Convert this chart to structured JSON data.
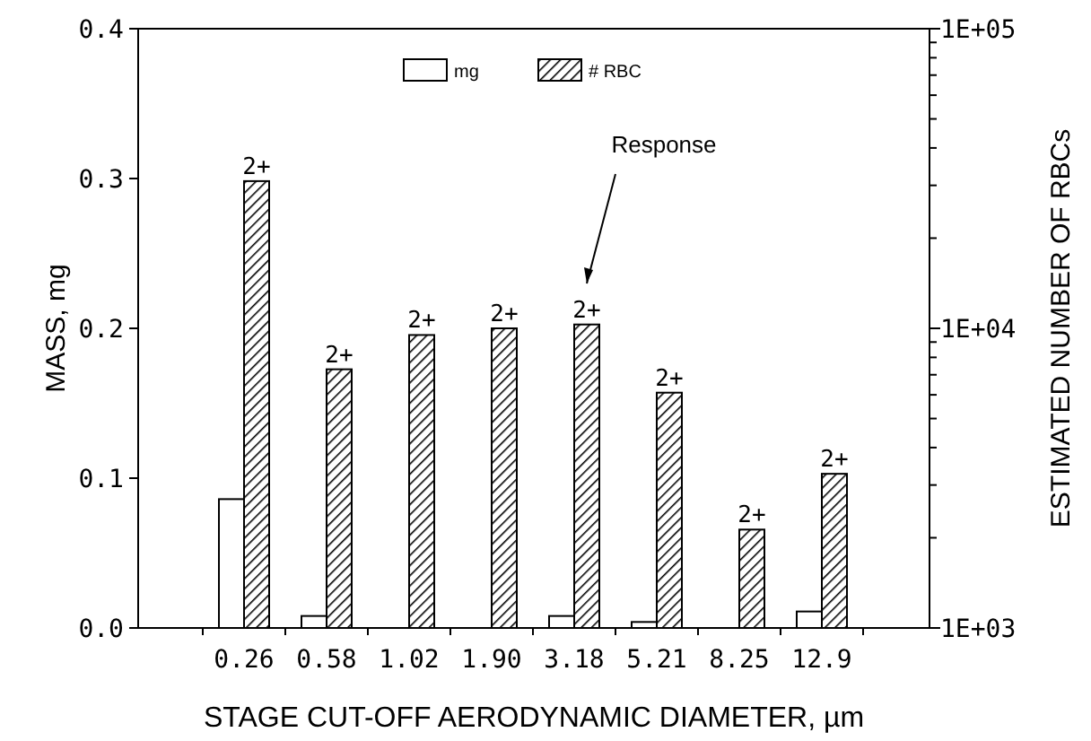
{
  "chart_data": {
    "type": "bar",
    "xlabel": "STAGE CUT-OFF AERODYNAMIC DIAMETER, µm",
    "ylabel": "MASS, mg",
    "y2label": "ESTIMATED NUMBER OF RBCs",
    "categories": [
      "0.26",
      "0.58",
      "1.02",
      "1.90",
      "3.18",
      "5.21",
      "8.25",
      "12.9"
    ],
    "series": [
      {
        "name": "mg",
        "color": "#ffffff",
        "values": [
          0.086,
          0.008,
          0,
          0,
          0.008,
          0.004,
          0,
          0.011
        ]
      },
      {
        "name": "# RBC",
        "color": "#000000",
        "axis": "y2",
        "values": [
          31000,
          7300,
          9500,
          10000,
          10300,
          6100,
          2130,
          3270
        ],
        "value_labels": [
          "2+",
          "2+",
          "2+",
          "2+",
          "2+",
          "2+",
          "2+",
          "2+"
        ]
      }
    ],
    "ylim": [
      0,
      0.4
    ],
    "yticks": [
      {
        "value": 0,
        "label": "0.0"
      },
      {
        "value": 0.1,
        "label": "0.1"
      },
      {
        "value": 0.2,
        "label": "0.2"
      },
      {
        "value": 0.3,
        "label": "0.3"
      },
      {
        "value": 0.4,
        "label": "0.4"
      }
    ],
    "y2lim": [
      1000,
      100000
    ],
    "y2ticks": [
      {
        "value": 1000,
        "label": "1E+03"
      },
      {
        "value": 2000,
        "label": null
      },
      {
        "value": 3000,
        "label": null
      },
      {
        "value": 4000,
        "label": null
      },
      {
        "value": 5000,
        "label": null
      },
      {
        "value": 6000,
        "label": null
      },
      {
        "value": 7000,
        "label": null
      },
      {
        "value": 8000,
        "label": null
      },
      {
        "value": 9000,
        "label": null
      },
      {
        "value": 10000,
        "label": "1E+04"
      },
      {
        "value": 20000,
        "label": null
      },
      {
        "value": 30000,
        "label": null
      },
      {
        "value": 40000,
        "label": null
      },
      {
        "value": 50000,
        "label": null
      },
      {
        "value": 60000,
        "label": null
      },
      {
        "value": 70000,
        "label": null
      },
      {
        "value": 80000,
        "label": null
      },
      {
        "value": 90000,
        "label": null
      },
      {
        "value": 100000,
        "label": "1E+05"
      }
    ],
    "log": "y2",
    "grid": false,
    "legend": "top",
    "annotations": [
      "Response"
    ]
  }
}
